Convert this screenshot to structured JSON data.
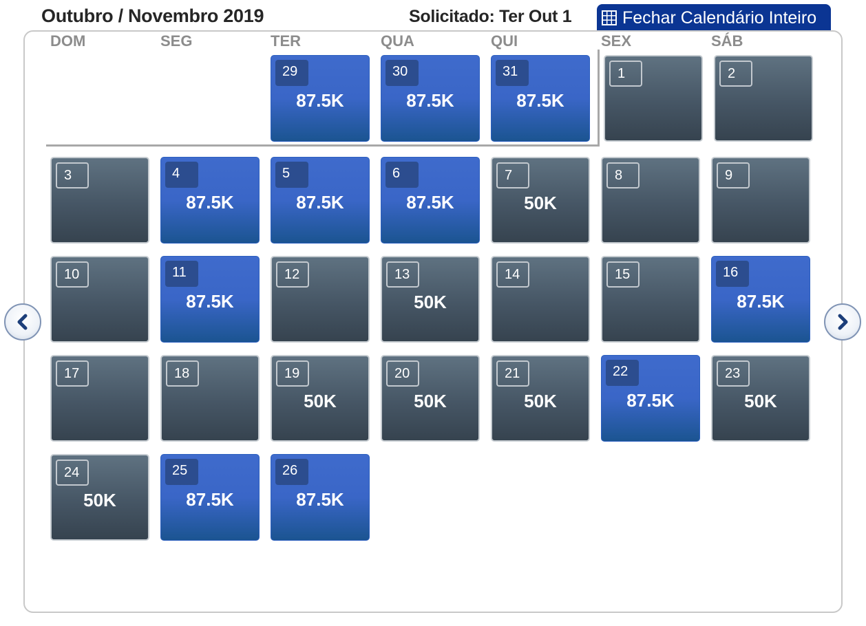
{
  "header": {
    "title": "Outubro / Novembro 2019",
    "requested": "Solicitado: Ter Out 1",
    "close_button": "Fechar Calendário Inteiro",
    "close_icon": "calendar-grid-icon"
  },
  "weekdays": [
    "DOM",
    "SEG",
    "TER",
    "QUA",
    "QUI",
    "SEX",
    "SÁB"
  ],
  "colors": {
    "available_blue": "#3a66c7",
    "unavailable_grey": "#465665",
    "header_button": "#0b3593"
  },
  "nav": {
    "prev_icon": "chevron-left-icon",
    "next_icon": "chevron-right-icon"
  },
  "days": [
    {
      "day": "29",
      "price": "87.5K",
      "status": "blue"
    },
    {
      "day": "30",
      "price": "87.5K",
      "status": "blue"
    },
    {
      "day": "31",
      "price": "87.5K",
      "status": "blue"
    },
    {
      "day": "1",
      "price": "",
      "status": "grey"
    },
    {
      "day": "2",
      "price": "",
      "status": "grey"
    },
    {
      "day": "3",
      "price": "",
      "status": "grey"
    },
    {
      "day": "4",
      "price": "87.5K",
      "status": "blue"
    },
    {
      "day": "5",
      "price": "87.5K",
      "status": "blue"
    },
    {
      "day": "6",
      "price": "87.5K",
      "status": "blue"
    },
    {
      "day": "7",
      "price": "50K",
      "status": "grey"
    },
    {
      "day": "8",
      "price": "",
      "status": "grey"
    },
    {
      "day": "9",
      "price": "",
      "status": "grey"
    },
    {
      "day": "10",
      "price": "",
      "status": "grey"
    },
    {
      "day": "11",
      "price": "87.5K",
      "status": "blue"
    },
    {
      "day": "12",
      "price": "",
      "status": "grey"
    },
    {
      "day": "13",
      "price": "50K",
      "status": "grey"
    },
    {
      "day": "14",
      "price": "",
      "status": "grey"
    },
    {
      "day": "15",
      "price": "",
      "status": "grey"
    },
    {
      "day": "16",
      "price": "87.5K",
      "status": "blue"
    },
    {
      "day": "17",
      "price": "",
      "status": "grey"
    },
    {
      "day": "18",
      "price": "",
      "status": "grey"
    },
    {
      "day": "19",
      "price": "50K",
      "status": "grey"
    },
    {
      "day": "20",
      "price": "50K",
      "status": "grey"
    },
    {
      "day": "21",
      "price": "50K",
      "status": "grey"
    },
    {
      "day": "22",
      "price": "87.5K",
      "status": "blue"
    },
    {
      "day": "23",
      "price": "50K",
      "status": "grey"
    },
    {
      "day": "24",
      "price": "50K",
      "status": "grey"
    },
    {
      "day": "25",
      "price": "87.5K",
      "status": "blue"
    },
    {
      "day": "26",
      "price": "87.5K",
      "status": "blue"
    }
  ]
}
